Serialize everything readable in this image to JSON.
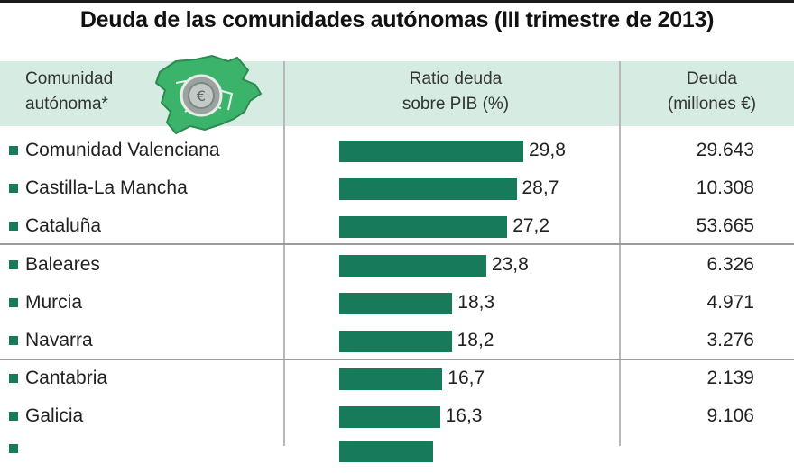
{
  "title": "Deuda de las comunidades autónomas (III trimestre de 2013)",
  "header": {
    "col1_line1": "Comunidad",
    "col1_line2": "autónoma*",
    "col2_line1": "Ratio deuda",
    "col2_line2": "sobre PIB (%)",
    "col3_line1": "Deuda",
    "col3_line2": "(millones €)"
  },
  "colors": {
    "bar": "#177a5a",
    "header_bg": "#d6ece2",
    "map": "#3bb36a"
  },
  "icons": {
    "map": "spain-map-icon",
    "coin": "euro-coin-icon"
  },
  "chart_data": {
    "type": "bar",
    "orientation": "horizontal",
    "title": "Deuda de las comunidades autónomas (III trimestre de 2013)",
    "categories": [
      "Comunidad Valenciana",
      "Castilla-La Mancha",
      "Cataluña",
      "Baleares",
      "Murcia",
      "Navarra",
      "Cantabria",
      "Galicia"
    ],
    "series": [
      {
        "name": "Ratio deuda sobre PIB (%)",
        "values": [
          29.8,
          28.7,
          27.2,
          23.8,
          18.3,
          18.2,
          16.7,
          16.3
        ],
        "labels": [
          "29,8",
          "28,7",
          "27,2",
          "23,8",
          "18,3",
          "18,2",
          "16,7",
          "16,3"
        ]
      },
      {
        "name": "Deuda (millones €)",
        "values": [
          29643,
          10308,
          53665,
          6326,
          4971,
          3276,
          2139,
          9106
        ],
        "labels": [
          "29.643",
          "10.308",
          "53.665",
          "6.326",
          "4.971",
          "3.276",
          "2.139",
          "9.106"
        ]
      }
    ],
    "xlim": [
      0,
      30
    ],
    "grid": false
  }
}
